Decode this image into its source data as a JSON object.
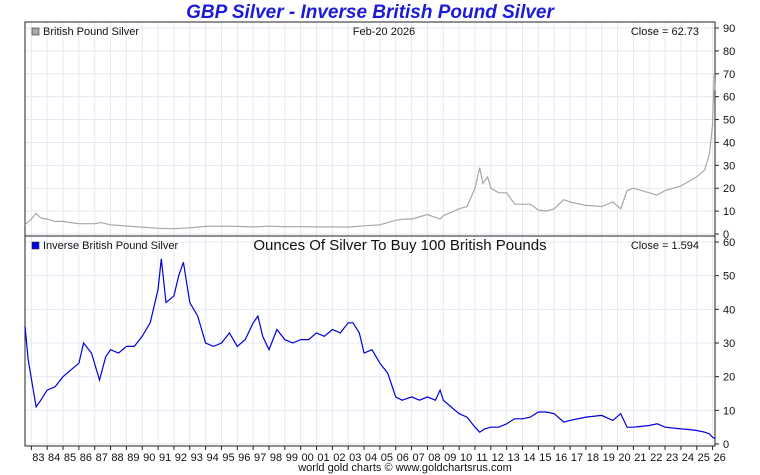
{
  "title": "GBP Silver - Inverse British Pound Silver",
  "footer": "world gold charts © www.goldchartsrus.com",
  "colors": {
    "title": "#1c1cd8",
    "top_series": "#a8a8a8",
    "bottom_series": "#0000dd",
    "grid": "#e3e9f2"
  },
  "chart_data": [
    {
      "type": "line",
      "title": "",
      "legend": "British Pound Silver",
      "date_label": "Feb-20 2026",
      "close_label": "Close = 62.73",
      "legend_placement": "top-left",
      "grid": true,
      "ylim": [
        0,
        90
      ],
      "yticks": [
        0,
        10,
        20,
        30,
        40,
        50,
        60,
        70,
        80,
        90
      ],
      "xlim": [
        1982.6,
        2026.15
      ],
      "series": [
        {
          "values": [
            [
              1982.6,
              4
            ],
            [
              1983.0,
              6.5
            ],
            [
              1983.3,
              9
            ],
            [
              1983.6,
              7
            ],
            [
              1984.0,
              6.5
            ],
            [
              1984.5,
              5.5
            ],
            [
              1985.0,
              5.5
            ],
            [
              1985.5,
              5
            ],
            [
              1986.0,
              4.5
            ],
            [
              1987.0,
              4.5
            ],
            [
              1987.4,
              5
            ],
            [
              1988.0,
              4
            ],
            [
              1989.0,
              3.5
            ],
            [
              1990.0,
              3
            ],
            [
              1991.0,
              2.5
            ],
            [
              1992.0,
              2.3
            ],
            [
              1993.0,
              2.7
            ],
            [
              1994.0,
              3.3
            ],
            [
              1995.0,
              3.4
            ],
            [
              1996.0,
              3.3
            ],
            [
              1997.0,
              3.1
            ],
            [
              1998.0,
              3.4
            ],
            [
              1999.0,
              3.2
            ],
            [
              2000.0,
              3.2
            ],
            [
              2001.0,
              3.1
            ],
            [
              2002.0,
              3.1
            ],
            [
              2003.0,
              3.0
            ],
            [
              2004.0,
              3.6
            ],
            [
              2005.0,
              4.0
            ],
            [
              2006.0,
              6.0
            ],
            [
              2006.5,
              6.5
            ],
            [
              2007.0,
              6.5
            ],
            [
              2008.0,
              8.5
            ],
            [
              2008.8,
              6.5
            ],
            [
              2009.0,
              8.0
            ],
            [
              2010.0,
              11
            ],
            [
              2010.5,
              12
            ],
            [
              2011.0,
              20
            ],
            [
              2011.3,
              29
            ],
            [
              2011.5,
              22
            ],
            [
              2011.8,
              25
            ],
            [
              2012.0,
              20
            ],
            [
              2012.5,
              18
            ],
            [
              2013.0,
              18
            ],
            [
              2013.5,
              13
            ],
            [
              2014.0,
              13
            ],
            [
              2014.5,
              13
            ],
            [
              2015.0,
              10.5
            ],
            [
              2015.5,
              10
            ],
            [
              2016.0,
              11
            ],
            [
              2016.6,
              15
            ],
            [
              2017.0,
              14
            ],
            [
              2018.0,
              12.5
            ],
            [
              2019.0,
              12
            ],
            [
              2019.7,
              14
            ],
            [
              2020.2,
              11
            ],
            [
              2020.6,
              19
            ],
            [
              2021.0,
              20
            ],
            [
              2022.0,
              18
            ],
            [
              2022.5,
              17
            ],
            [
              2023.0,
              19
            ],
            [
              2024.0,
              21
            ],
            [
              2024.5,
              23
            ],
            [
              2025.0,
              25
            ],
            [
              2025.5,
              28
            ],
            [
              2025.8,
              35
            ],
            [
              2026.0,
              48
            ],
            [
              2026.1,
              70
            ],
            [
              2026.15,
              62.73
            ]
          ]
        }
      ]
    },
    {
      "type": "line",
      "title": "Ounces Of Silver To Buy 100 British Pounds",
      "legend": "Inverse British Pound Silver",
      "close_label": "Close = 1.594",
      "legend_placement": "top-left",
      "grid": true,
      "ylim": [
        0,
        60
      ],
      "yticks": [
        0,
        10,
        20,
        30,
        40,
        50,
        60
      ],
      "xlim": [
        1982.6,
        2026.15
      ],
      "xticks": [
        "83",
        "84",
        "85",
        "86",
        "87",
        "88",
        "89",
        "90",
        "91",
        "92",
        "93",
        "94",
        "95",
        "96",
        "97",
        "98",
        "99",
        "00",
        "01",
        "02",
        "03",
        "04",
        "05",
        "06",
        "07",
        "08",
        "09",
        "10",
        "11",
        "12",
        "13",
        "14",
        "15",
        "16",
        "17",
        "18",
        "19",
        "20",
        "21",
        "22",
        "23",
        "24",
        "25",
        "26"
      ],
      "series": [
        {
          "values": [
            [
              1982.6,
              35
            ],
            [
              1982.8,
              25
            ],
            [
              1983.3,
              11
            ],
            [
              1983.6,
              13
            ],
            [
              1984.0,
              16
            ],
            [
              1984.5,
              17
            ],
            [
              1985.0,
              20
            ],
            [
              1985.5,
              22
            ],
            [
              1986.0,
              24
            ],
            [
              1986.3,
              30
            ],
            [
              1986.8,
              27
            ],
            [
              1987.3,
              19
            ],
            [
              1987.7,
              26
            ],
            [
              1988.0,
              28
            ],
            [
              1988.5,
              27
            ],
            [
              1989.0,
              29
            ],
            [
              1989.5,
              29
            ],
            [
              1990.0,
              32
            ],
            [
              1990.5,
              36
            ],
            [
              1991.0,
              46
            ],
            [
              1991.2,
              55
            ],
            [
              1991.5,
              42
            ],
            [
              1992.0,
              44
            ],
            [
              1992.3,
              50
            ],
            [
              1992.6,
              54
            ],
            [
              1993.0,
              42
            ],
            [
              1993.5,
              38
            ],
            [
              1994.0,
              30
            ],
            [
              1994.5,
              29
            ],
            [
              1995.0,
              30
            ],
            [
              1995.5,
              33
            ],
            [
              1996.0,
              29
            ],
            [
              1996.5,
              31
            ],
            [
              1997.0,
              36
            ],
            [
              1997.3,
              38
            ],
            [
              1997.6,
              32
            ],
            [
              1998.0,
              28
            ],
            [
              1998.5,
              34
            ],
            [
              1999.0,
              31
            ],
            [
              1999.5,
              30
            ],
            [
              2000.0,
              31
            ],
            [
              2000.5,
              31
            ],
            [
              2001.0,
              33
            ],
            [
              2001.5,
              32
            ],
            [
              2002.0,
              34
            ],
            [
              2002.5,
              33
            ],
            [
              2003.0,
              36
            ],
            [
              2003.3,
              36
            ],
            [
              2003.7,
              33
            ],
            [
              2004.0,
              27
            ],
            [
              2004.5,
              28
            ],
            [
              2005.0,
              24
            ],
            [
              2005.5,
              21
            ],
            [
              2006.0,
              14
            ],
            [
              2006.4,
              13
            ],
            [
              2007.0,
              14
            ],
            [
              2007.5,
              13
            ],
            [
              2008.0,
              14
            ],
            [
              2008.5,
              13
            ],
            [
              2008.8,
              16
            ],
            [
              2009.0,
              13
            ],
            [
              2009.5,
              11
            ],
            [
              2010.0,
              9
            ],
            [
              2010.5,
              8
            ],
            [
              2011.0,
              5
            ],
            [
              2011.3,
              3.5
            ],
            [
              2011.6,
              4.5
            ],
            [
              2012.0,
              5
            ],
            [
              2012.5,
              5
            ],
            [
              2013.0,
              6
            ],
            [
              2013.5,
              7.5
            ],
            [
              2014.0,
              7.5
            ],
            [
              2014.5,
              8
            ],
            [
              2015.0,
              9.5
            ],
            [
              2015.5,
              9.5
            ],
            [
              2016.0,
              9
            ],
            [
              2016.6,
              6.5
            ],
            [
              2017.0,
              7
            ],
            [
              2018.0,
              8
            ],
            [
              2019.0,
              8.5
            ],
            [
              2019.7,
              7
            ],
            [
              2020.2,
              9
            ],
            [
              2020.6,
              5
            ],
            [
              2021.0,
              5
            ],
            [
              2022.0,
              5.5
            ],
            [
              2022.5,
              6
            ],
            [
              2023.0,
              5
            ],
            [
              2024.0,
              4.5
            ],
            [
              2024.5,
              4.3
            ],
            [
              2025.0,
              4
            ],
            [
              2025.5,
              3.5
            ],
            [
              2025.8,
              3
            ],
            [
              2026.0,
              2
            ],
            [
              2026.15,
              1.594
            ]
          ]
        }
      ]
    }
  ]
}
